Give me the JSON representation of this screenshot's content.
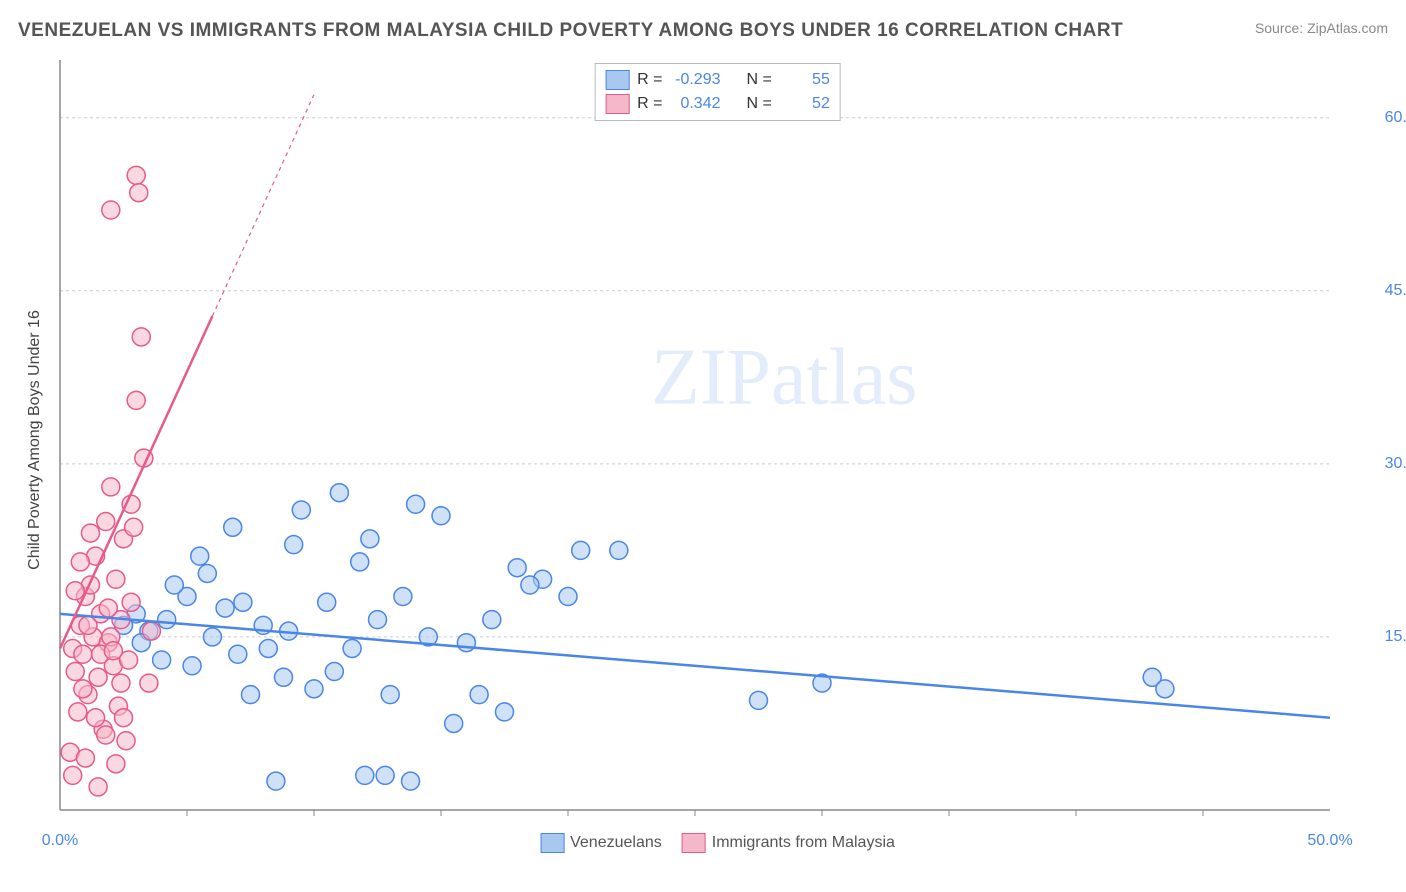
{
  "title": "VENEZUELAN VS IMMIGRANTS FROM MALAYSIA CHILD POVERTY AMONG BOYS UNDER 16 CORRELATION CHART",
  "source": "Source: ZipAtlas.com",
  "watermark": "ZIPatlas",
  "chart": {
    "type": "scatter",
    "background_color": "#ffffff",
    "grid_color": "#cccccc",
    "axis_color": "#888888",
    "y_axis_label": "Child Poverty Among Boys Under 16",
    "xlim": [
      0,
      50
    ],
    "ylim": [
      0,
      65
    ],
    "x_ticks": [
      0,
      50
    ],
    "x_tick_labels": [
      "0.0%",
      "50.0%"
    ],
    "y_ticks": [
      15,
      30,
      45,
      60
    ],
    "y_tick_labels": [
      "15.0%",
      "30.0%",
      "45.0%",
      "60.0%"
    ],
    "x_minor_ticks": [
      5,
      10,
      15,
      20,
      25,
      30,
      35,
      40,
      45
    ],
    "marker_radius": 9,
    "marker_stroke_width": 1.5,
    "trend_line_width": 2.5,
    "series": [
      {
        "name": "Venezuelans",
        "fill_color": "#a8c8f0",
        "stroke_color": "#4a86e8",
        "fill_opacity": 0.55,
        "r_value": "-0.293",
        "n_value": "55",
        "trend": {
          "x1": 0,
          "y1": 17.0,
          "x2": 50,
          "y2": 8.0,
          "dash": "none"
        },
        "points": [
          [
            3.5,
            15.5
          ],
          [
            4.0,
            13.0
          ],
          [
            5.0,
            18.5
          ],
          [
            5.2,
            12.5
          ],
          [
            5.5,
            22.0
          ],
          [
            6.0,
            15.0
          ],
          [
            6.5,
            17.5
          ],
          [
            7.0,
            13.5
          ],
          [
            7.5,
            10.0
          ],
          [
            8.0,
            16.0
          ],
          [
            8.5,
            2.5
          ],
          [
            9.0,
            15.5
          ],
          [
            9.2,
            23.0
          ],
          [
            10.0,
            10.5
          ],
          [
            10.5,
            18.0
          ],
          [
            11.0,
            27.5
          ],
          [
            11.5,
            14.0
          ],
          [
            12.0,
            3.0
          ],
          [
            12.2,
            23.5
          ],
          [
            12.5,
            16.5
          ],
          [
            13.0,
            10.0
          ],
          [
            13.5,
            18.5
          ],
          [
            13.8,
            2.5
          ],
          [
            14.0,
            26.5
          ],
          [
            14.5,
            15.0
          ],
          [
            15.0,
            25.5
          ],
          [
            15.5,
            7.5
          ],
          [
            16.5,
            10.0
          ],
          [
            17.0,
            16.5
          ],
          [
            17.5,
            8.5
          ],
          [
            18.0,
            21.0
          ],
          [
            19.0,
            20.0
          ],
          [
            20.5,
            22.5
          ],
          [
            43.0,
            11.5
          ],
          [
            43.5,
            10.5
          ],
          [
            27.5,
            9.5
          ],
          [
            30.0,
            11.0
          ],
          [
            3.0,
            17.0
          ],
          [
            3.2,
            14.5
          ],
          [
            4.5,
            19.5
          ],
          [
            2.5,
            16.0
          ],
          [
            6.8,
            24.5
          ],
          [
            8.8,
            11.5
          ],
          [
            9.5,
            26.0
          ],
          [
            11.8,
            21.5
          ],
          [
            18.5,
            19.5
          ],
          [
            20.0,
            18.5
          ],
          [
            5.8,
            20.5
          ],
          [
            7.2,
            18.0
          ],
          [
            8.2,
            14.0
          ],
          [
            10.8,
            12.0
          ],
          [
            16.0,
            14.5
          ],
          [
            12.8,
            3.0
          ],
          [
            22.0,
            22.5
          ],
          [
            4.2,
            16.5
          ]
        ]
      },
      {
        "name": "Immigrants from Malaysia",
        "fill_color": "#f5b8c8",
        "stroke_color": "#e85a8a",
        "fill_opacity": 0.55,
        "r_value": "0.342",
        "n_value": "52",
        "trend": {
          "x1": 0,
          "y1": 14.0,
          "x2": 10,
          "y2": 62.0,
          "dash": "4,4",
          "solid_until_x": 6.0
        },
        "points": [
          [
            0.5,
            14.0
          ],
          [
            0.6,
            12.0
          ],
          [
            0.7,
            8.5
          ],
          [
            0.8,
            16.0
          ],
          [
            0.9,
            13.5
          ],
          [
            1.0,
            18.5
          ],
          [
            1.1,
            10.0
          ],
          [
            1.2,
            19.5
          ],
          [
            1.3,
            15.0
          ],
          [
            1.4,
            22.0
          ],
          [
            1.5,
            11.5
          ],
          [
            1.6,
            17.0
          ],
          [
            1.7,
            7.0
          ],
          [
            1.8,
            25.0
          ],
          [
            1.9,
            14.5
          ],
          [
            2.0,
            28.0
          ],
          [
            2.1,
            12.5
          ],
          [
            2.2,
            20.0
          ],
          [
            2.3,
            9.0
          ],
          [
            2.4,
            16.5
          ],
          [
            2.5,
            23.5
          ],
          [
            2.6,
            6.0
          ],
          [
            2.7,
            13.0
          ],
          [
            2.8,
            18.0
          ],
          [
            2.9,
            24.5
          ],
          [
            3.0,
            35.5
          ],
          [
            3.2,
            41.0
          ],
          [
            3.3,
            30.5
          ],
          [
            3.5,
            11.0
          ],
          [
            3.6,
            15.5
          ],
          [
            2.0,
            52.0
          ],
          [
            3.0,
            55.0
          ],
          [
            3.1,
            53.5
          ],
          [
            0.4,
            5.0
          ],
          [
            0.5,
            3.0
          ],
          [
            1.0,
            4.5
          ],
          [
            1.5,
            2.0
          ],
          [
            1.8,
            6.5
          ],
          [
            2.2,
            4.0
          ],
          [
            2.5,
            8.0
          ],
          [
            0.6,
            19.0
          ],
          [
            0.8,
            21.5
          ],
          [
            1.2,
            24.0
          ],
          [
            1.6,
            13.5
          ],
          [
            2.0,
            15.0
          ],
          [
            2.4,
            11.0
          ],
          [
            2.8,
            26.5
          ],
          [
            0.9,
            10.5
          ],
          [
            1.4,
            8.0
          ],
          [
            1.9,
            17.5
          ],
          [
            1.1,
            16.0
          ],
          [
            2.1,
            13.8
          ]
        ]
      }
    ],
    "legend_bottom": [
      {
        "label": "Venezuelans",
        "fill": "#a8c8f0",
        "stroke": "#4a86e8"
      },
      {
        "label": "Immigrants from Malaysia",
        "fill": "#f5b8c8",
        "stroke": "#e85a8a"
      }
    ]
  },
  "labels": {
    "r_prefix": "R =",
    "n_prefix": "N ="
  }
}
